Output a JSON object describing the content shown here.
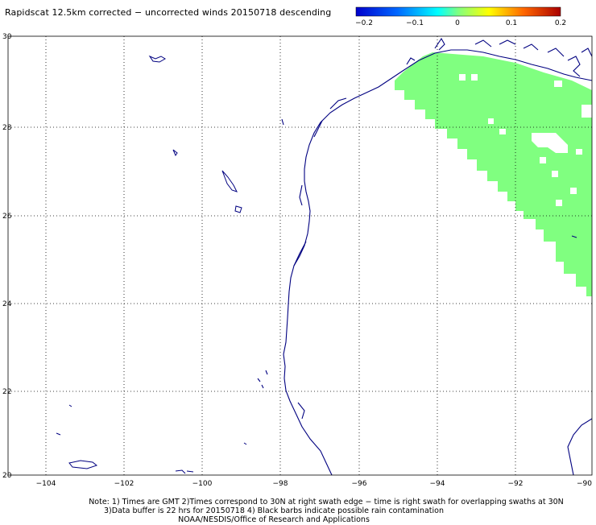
{
  "header": {
    "title": "Rapidscat 12.5km corrected − uncorrected winds 20150718 descending"
  },
  "colorbar": {
    "tick_labels": [
      "−0.2",
      "−0.1",
      "0",
      "0.1",
      "0.2"
    ],
    "colors": [
      "#0000cc",
      "#0099ff",
      "#00ffff",
      "#ffff00",
      "#ff6600",
      "#aa0000"
    ]
  },
  "map": {
    "lat_labels": [
      "30",
      "28",
      "26",
      "24",
      "22",
      "20"
    ],
    "lon_labels": [
      "−104",
      "−102",
      "−100",
      "−98",
      "−96",
      "−94",
      "−92",
      "−90"
    ],
    "swath_color": "#80ff80",
    "coast_color": "#000080"
  },
  "notes": {
    "line1": "Note: 1) Times are GMT 2)Times correspond to 30N at right swath edge − time is right swath for overlapping swaths at 30N",
    "line2": "3)Data buffer is 22 hrs for 20150718 4) Black barbs indicate possible rain contamination",
    "line3": "NOAA/NESDIS/Office of Research and Applications"
  }
}
